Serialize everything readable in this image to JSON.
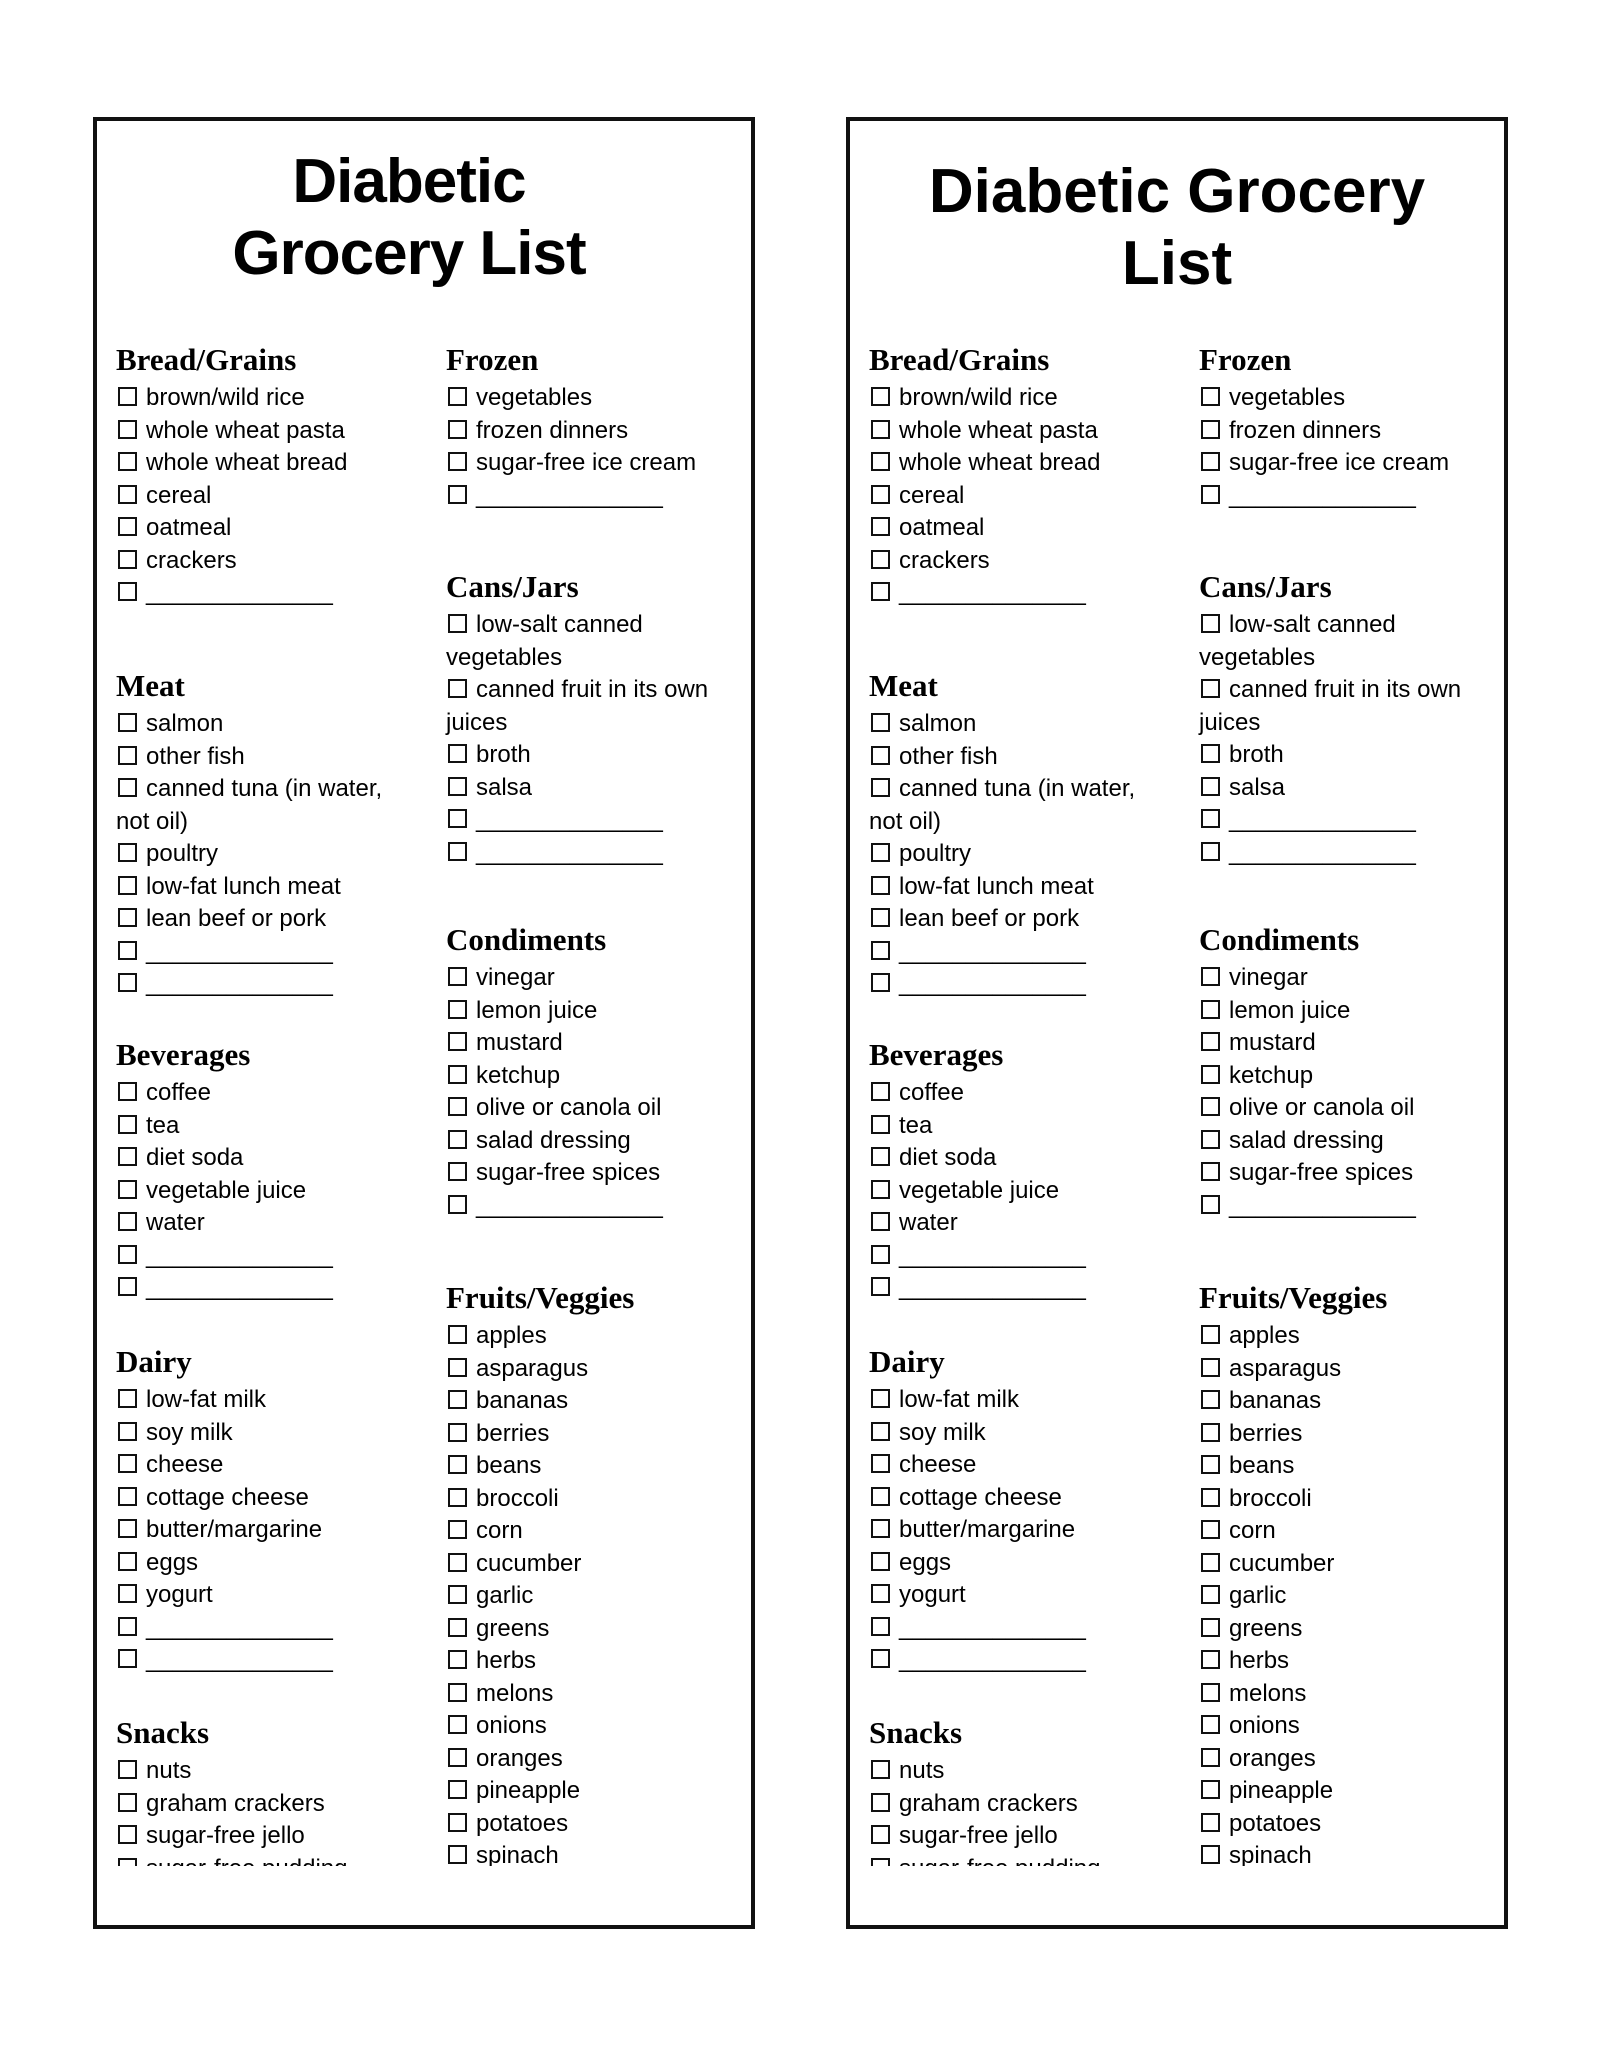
{
  "title": "Diabetic Grocery List",
  "checkbox_icon": "empty-checkbox",
  "columns": [
    [
      {
        "heading": "Bread/Grains",
        "items": [
          "brown/wild rice",
          "whole wheat pasta",
          "whole wheat bread",
          "cereal",
          "oatmeal",
          "crackers",
          "______________"
        ]
      },
      {
        "heading": "Meat",
        "items": [
          "salmon",
          "other fish",
          "canned tuna (in water, not oil)",
          "poultry",
          "low-fat lunch meat",
          "lean beef or pork",
          "______________",
          "______________"
        ]
      },
      {
        "heading": "Beverages",
        "items": [
          "coffee",
          "tea",
          "diet soda",
          "vegetable juice",
          "water",
          "______________",
          "______________"
        ]
      },
      {
        "heading": "Dairy",
        "items": [
          "low-fat milk",
          "soy milk",
          "cheese",
          "cottage cheese",
          "butter/margarine",
          "eggs",
          "yogurt",
          "______________",
          "______________"
        ]
      },
      {
        "heading": "Snacks",
        "items": [
          "nuts",
          "graham crackers",
          "sugar-free jello",
          "sugar-free pudding"
        ]
      }
    ],
    [
      {
        "heading": "Frozen",
        "items": [
          "vegetables",
          "frozen dinners",
          "sugar-free ice cream",
          "______________"
        ]
      },
      {
        "heading": "Cans/Jars",
        "items": [
          "low-salt canned vegetables",
          "canned fruit in its own juices",
          "broth",
          "salsa",
          "______________",
          "______________"
        ]
      },
      {
        "heading": "Condiments",
        "items": [
          "vinegar",
          "lemon juice",
          "mustard",
          "ketchup",
          "olive or canola oil",
          "salad dressing",
          "sugar-free spices",
          "______________"
        ]
      },
      {
        "heading": "Fruits/Veggies",
        "items": [
          "apples",
          "asparagus",
          "bananas",
          "berries",
          "beans",
          "broccoli",
          "corn",
          "cucumber",
          "garlic",
          "greens",
          "herbs",
          "melons",
          "onions",
          "oranges",
          "pineapple",
          "potatoes",
          "spinach"
        ]
      }
    ]
  ]
}
